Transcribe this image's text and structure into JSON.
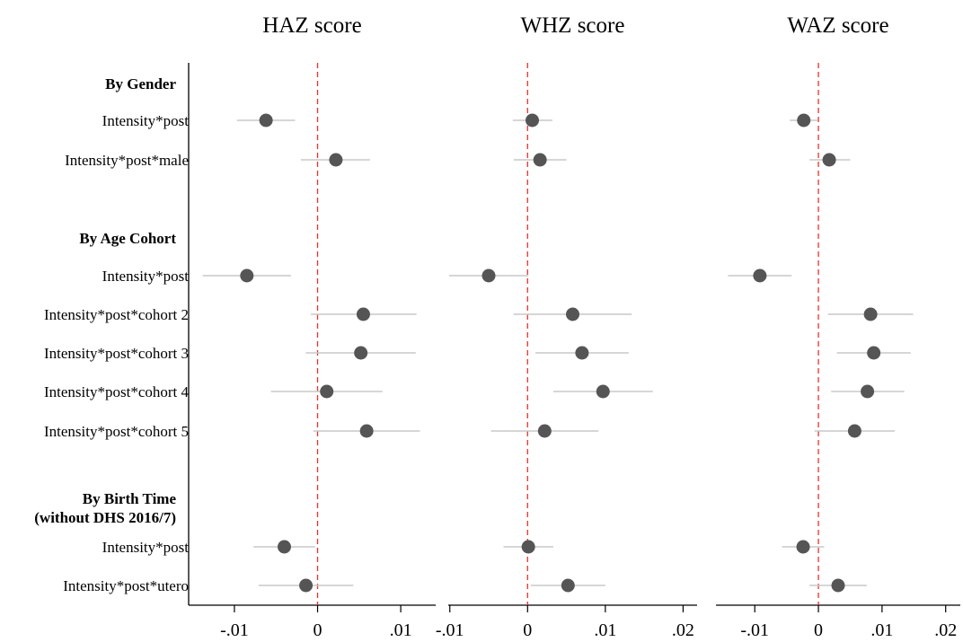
{
  "chart_data": {
    "type": "scatter",
    "subtype": "coefficient-plot",
    "marker_color": "#555555",
    "ci_color": "#c8c8c8",
    "reference_line_color": "#e8332a",
    "group_headers": [
      {
        "label": "By Gender",
        "lines": [
          "By Gender"
        ]
      },
      {
        "label": "By Age Cohort",
        "lines": [
          "By Age Cohort"
        ]
      },
      {
        "label": "By Birth Time (without DHS 2016/7)",
        "lines": [
          "By Birth Time",
          "(without DHS 2016/7)"
        ]
      }
    ],
    "rows": [
      "Intensity*post",
      "Intensity*post*male",
      "Intensity*post",
      "Intensity*post*cohort 2",
      "Intensity*post*cohort 3",
      "Intensity*post*cohort 4",
      "Intensity*post*cohort 5",
      "Intensity*post",
      "Intensity*post*utero"
    ],
    "panels": [
      {
        "title": "HAZ score",
        "xlim": [
          -0.0155,
          0.0142
        ],
        "ticks": [
          -0.01,
          0,
          0.01
        ],
        "tick_labels": [
          "-.01",
          "0",
          ".01"
        ],
        "estimates": [
          -0.0062,
          0.0022,
          -0.0085,
          0.0055,
          0.0052,
          0.0011,
          0.0059,
          -0.004,
          -0.0014
        ],
        "ci_low": [
          -0.0097,
          -0.002,
          -0.0138,
          -0.0008,
          -0.0014,
          -0.0056,
          -0.0005,
          -0.0077,
          -0.0071
        ],
        "ci_high": [
          -0.0027,
          0.0063,
          -0.0032,
          0.0119,
          0.0118,
          0.0078,
          0.0123,
          -0.0003,
          0.0043
        ]
      },
      {
        "title": "WHZ score",
        "xlim": [
          -0.0102,
          0.0218
        ],
        "ticks": [
          -0.01,
          0,
          0.01,
          0.02
        ],
        "tick_labels": [
          "-.01",
          "0",
          ".01",
          ".02"
        ],
        "estimates": [
          0.0006,
          0.0016,
          -0.005,
          0.0058,
          0.007,
          0.0097,
          0.0022,
          0.0001,
          0.0052
        ],
        "ci_low": [
          -0.0019,
          -0.0018,
          -0.0101,
          -0.0018,
          0.001,
          0.0033,
          -0.0047,
          -0.0031,
          0.0004
        ],
        "ci_high": [
          0.0032,
          0.005,
          0.0001,
          0.0134,
          0.013,
          0.0161,
          0.0091,
          0.0033,
          0.01
        ]
      },
      {
        "title": "WAZ score",
        "xlim": [
          -0.0161,
          0.0223
        ],
        "ticks": [
          -0.01,
          0,
          0.01,
          0.02
        ],
        "tick_labels": [
          "-.01",
          "0",
          ".01",
          ".02"
        ],
        "estimates": [
          -0.0023,
          0.0017,
          -0.0092,
          0.0082,
          0.0087,
          0.0077,
          0.0057,
          -0.0024,
          0.0031
        ],
        "ci_low": [
          -0.0045,
          -0.0014,
          -0.0142,
          0.0015,
          0.0029,
          0.002,
          -0.0006,
          -0.0057,
          -0.0014
        ],
        "ci_high": [
          -0.0001,
          0.005,
          -0.0042,
          0.0149,
          0.0145,
          0.0135,
          0.012,
          0.0009,
          0.0076
        ]
      }
    ]
  }
}
